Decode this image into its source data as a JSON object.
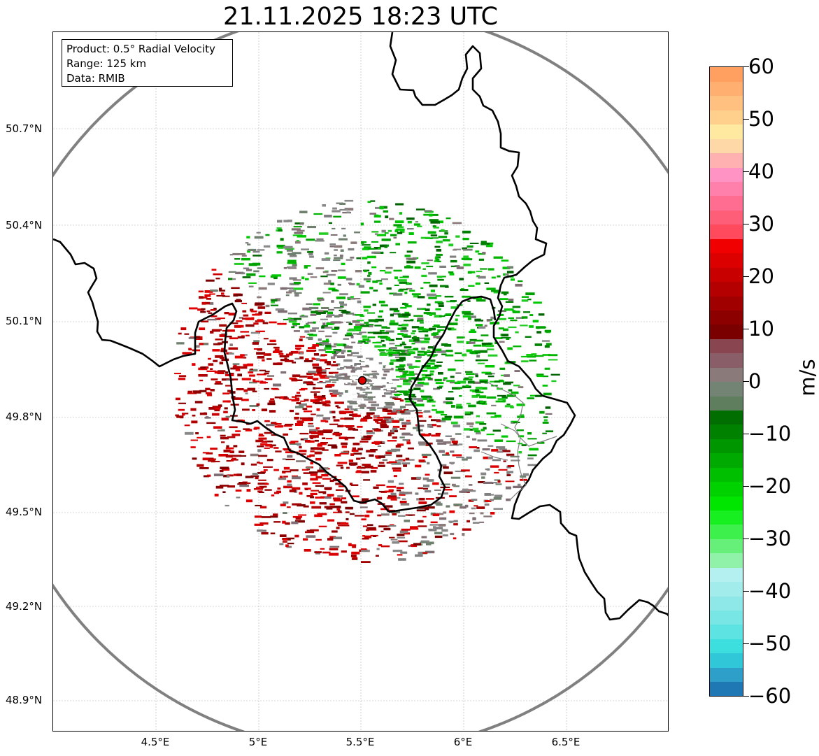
{
  "title": "21.11.2025 18:23 UTC",
  "info_box": {
    "product": "Product: 0.5° Radial Velocity",
    "range": "Range: 125 km",
    "data": "Data: RMIB"
  },
  "lat_labels": [
    "50.7°N",
    "50.4°N",
    "50.1°N",
    "49.8°N",
    "49.5°N",
    "49.2°N",
    "48.9°N"
  ],
  "lon_labels": [
    "4.5°E",
    "5°E",
    "5.5°E",
    "6°E",
    "6.5°E"
  ],
  "colorbar": {
    "unit": "m/s",
    "ticks": [
      "60",
      "50",
      "40",
      "30",
      "20",
      "10",
      "0",
      "−10",
      "−20",
      "−30",
      "−40",
      "−50",
      "−60"
    ],
    "min": -60,
    "max": 60,
    "colors": [
      "#1f77b4",
      "#2d9fc9",
      "#30c8d8",
      "#3ddede",
      "#5ee3e3",
      "#79e6e6",
      "#8fe8e8",
      "#a3ecec",
      "#b5f0f0",
      "#8ff2a8",
      "#66f07a",
      "#3ef04c",
      "#18ef20",
      "#00e600",
      "#00d200",
      "#00bf00",
      "#00aa00",
      "#009600",
      "#008200",
      "#006e00",
      "#5e7e5e",
      "#748474",
      "#8a7a7a",
      "#8a5e68",
      "#8a4650",
      "#7a0000",
      "#8c0000",
      "#a00000",
      "#b40000",
      "#c80000",
      "#dc0000",
      "#f00000",
      "#ff4a5e",
      "#ff5e78",
      "#ff6e90",
      "#ff80aa",
      "#ff94c4",
      "#ffb0b0",
      "#ffd8a8",
      "#ffe8a0",
      "#ffd08c",
      "#ffc080",
      "#ffb070",
      "#ffa060"
    ]
  },
  "map": {
    "radar_site": "radar-site-marker",
    "range_ring": "range-ring",
    "borders": "country-borders"
  }
}
